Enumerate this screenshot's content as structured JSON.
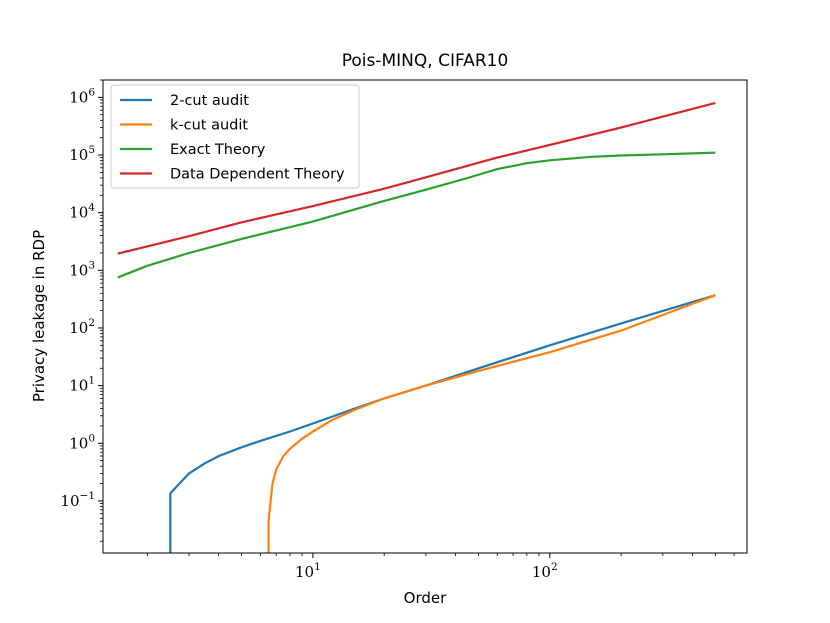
{
  "chart_data": {
    "type": "line",
    "title": "Pois-MINQ, CIFAR10",
    "xlabel": "Order",
    "ylabel": "Privacy leakage in RDP",
    "xscale": "log",
    "yscale": "log",
    "xlim": [
      1.3,
      680
    ],
    "ylim": [
      0.0125,
      2000000
    ],
    "grid": false,
    "legend_position": "top-left",
    "x_ticks": [
      {
        "value": 10,
        "base": "10",
        "exp": "1"
      },
      {
        "value": 100,
        "base": "10",
        "exp": "2"
      }
    ],
    "y_ticks": [
      {
        "value": 0.1,
        "base": "10",
        "exp": "−1"
      },
      {
        "value": 1,
        "base": "10",
        "exp": "0"
      },
      {
        "value": 10,
        "base": "10",
        "exp": "1"
      },
      {
        "value": 100,
        "base": "10",
        "exp": "2"
      },
      {
        "value": 1000,
        "base": "10",
        "exp": "3"
      },
      {
        "value": 10000,
        "base": "10",
        "exp": "4"
      },
      {
        "value": 100000,
        "base": "10",
        "exp": "5"
      },
      {
        "value": 1000000,
        "base": "10",
        "exp": "6"
      }
    ],
    "series": [
      {
        "name": "2-cut audit",
        "color": "#1f77b4",
        "x": [
          2.5,
          2.5,
          3.0,
          3.5,
          4.0,
          5.0,
          6.0,
          8.0,
          10.0,
          15.0,
          20.0,
          30.0,
          50.0,
          100.0,
          200.0,
          500.0
        ],
        "y": [
          0.0125,
          0.135,
          0.3,
          0.45,
          0.6,
          0.85,
          1.1,
          1.6,
          2.2,
          4.0,
          6.0,
          10.0,
          20.0,
          50.0,
          120.0,
          370.0
        ]
      },
      {
        "name": "k-cut audit",
        "color": "#ff7f0e",
        "x": [
          6.5,
          6.5,
          6.75,
          7.0,
          7.5,
          8.0,
          9.0,
          10.0,
          12.0,
          15.0,
          20.0,
          30.0,
          50.0,
          100.0,
          200.0,
          500.0
        ],
        "y": [
          0.0125,
          0.045,
          0.2,
          0.35,
          0.6,
          0.8,
          1.2,
          1.6,
          2.5,
          3.8,
          6.0,
          10.0,
          18.0,
          38.0,
          90.0,
          370.0
        ]
      },
      {
        "name": "Exact Theory",
        "color": "#2ca02c",
        "x": [
          1.5,
          2.0,
          3.0,
          5.0,
          10.0,
          20.0,
          30.0,
          45.0,
          60.0,
          80.0,
          100.0,
          150.0,
          200.0,
          300.0,
          500.0
        ],
        "y": [
          750,
          1200,
          2000,
          3500,
          7000,
          16000,
          25000,
          40000,
          57000,
          72000,
          81000,
          93000,
          98000,
          103000,
          110000
        ]
      },
      {
        "name": "Data Dependent Theory",
        "color": "#d62728",
        "x": [
          1.5,
          3.0,
          5.0,
          10.0,
          20.0,
          30.0,
          60.0,
          100.0,
          200.0,
          500.0
        ],
        "y": [
          1950,
          3900,
          6800,
          13000,
          26000,
          41000,
          90000,
          150000,
          300000,
          800000
        ]
      }
    ]
  }
}
